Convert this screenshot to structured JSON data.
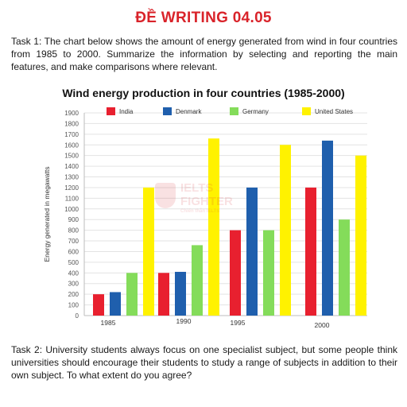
{
  "header": {
    "title": "ĐỀ WRITING 04.05"
  },
  "task1": {
    "text": "Task 1: The chart below shows the amount of energy generated from wind in four countries from 1985 to 2000. Summarize the information by selecting and reporting the main features, and make comparisons where relevant."
  },
  "task2": {
    "text": "Task 2: University students always focus on one specialist subject, but some people think universities should encourage their students to study a range of subjects in addition to their own subject. To what extent do you agree?"
  },
  "watermark": {
    "line1": "IELTS",
    "line2": "FIGHTER",
    "line3": "Chiến thắn IELTS"
  },
  "chart_data": {
    "type": "bar",
    "title": "Wind energy production in four countries (1985-2000)",
    "xlabel": "",
    "ylabel": "Energy generated in megawatts",
    "categories": [
      "1985",
      "1990",
      "1995",
      "2000"
    ],
    "ylim": [
      0,
      1900
    ],
    "yticks": [
      0,
      100,
      200,
      300,
      400,
      500,
      600,
      700,
      800,
      900,
      1000,
      1100,
      1200,
      1300,
      1400,
      1500,
      1600,
      1700,
      1800,
      1900
    ],
    "grid": true,
    "legend_position": "top",
    "series": [
      {
        "name": "India",
        "color": "#e8202f",
        "values": [
          200,
          400,
          800,
          1200
        ]
      },
      {
        "name": "Denmark",
        "color": "#1f5fad",
        "values": [
          220,
          410,
          1200,
          1640
        ]
      },
      {
        "name": "Germany",
        "color": "#84dc5a",
        "values": [
          400,
          660,
          800,
          900
        ]
      },
      {
        "name": "United States",
        "color": "#fff200",
        "values": [
          1200,
          1660,
          1600,
          1500
        ]
      }
    ]
  }
}
